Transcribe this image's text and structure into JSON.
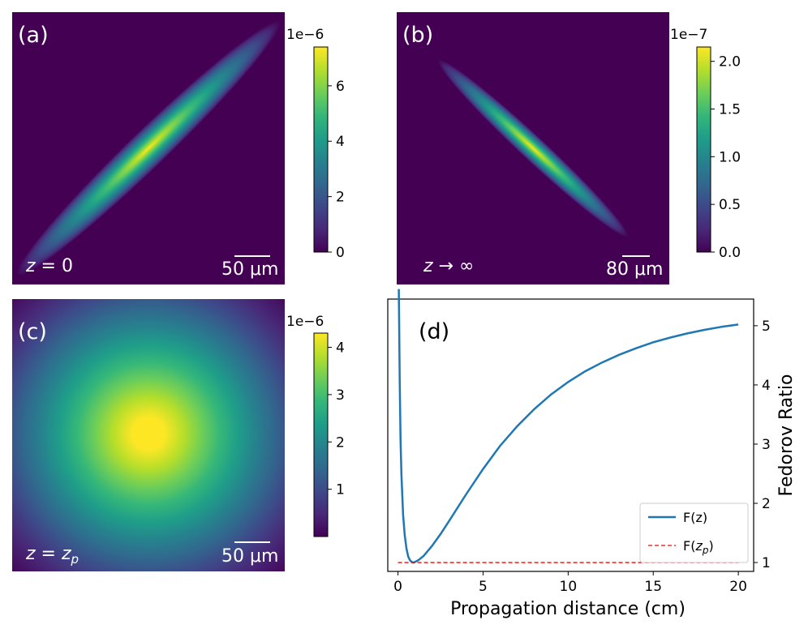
{
  "colors": {
    "viridis": [
      "#440154",
      "#482878",
      "#3e4989",
      "#31688e",
      "#26828e",
      "#1f9e89",
      "#35b779",
      "#6ece58",
      "#b5de2b",
      "#fde725"
    ],
    "background": "#440154",
    "curve": "#1f77b4",
    "ref_line": "#ff0000"
  },
  "chart_data": [
    {
      "type": "heatmap",
      "panel_label": "(a)",
      "annotation_var": "z",
      "annotation_rest": " = 0",
      "scale_bar": "50 μm",
      "colorbar": {
        "exponent": "1e−6",
        "ticks": [
          "0",
          "2",
          "4",
          "6"
        ],
        "tick_values": [
          0,
          2,
          4,
          6
        ],
        "range": [
          0,
          7.4
        ]
      },
      "orientation": "diagonal-up"
    },
    {
      "type": "heatmap",
      "panel_label": "(b)",
      "annotation_var": "z",
      "annotation_rest": " → ∞",
      "scale_bar": "80 μm",
      "colorbar": {
        "exponent": "1e−7",
        "ticks": [
          "0.0",
          "0.5",
          "1.0",
          "1.5",
          "2.0"
        ],
        "tick_values": [
          0,
          0.5,
          1.0,
          1.5,
          2.0
        ],
        "range": [
          0,
          2.15
        ]
      },
      "orientation": "diagonal-down"
    },
    {
      "type": "heatmap",
      "panel_label": "(c)",
      "annotation_var": "z",
      "annotation_rest": " = ",
      "annotation_sub_base": "z",
      "annotation_sub": "p",
      "scale_bar": "50 μm",
      "colorbar": {
        "exponent": "1e−6",
        "ticks": [
          "1",
          "2",
          "3",
          "4"
        ],
        "tick_values": [
          1,
          2,
          3,
          4
        ],
        "range": [
          0,
          4.3
        ]
      },
      "orientation": "circular"
    },
    {
      "type": "line",
      "panel_label": "(d)",
      "xlabel": "Propagation distance (cm)",
      "ylabel": "Fedorov Ratio",
      "xlim": [
        -0.6,
        20.9
      ],
      "ylim": [
        0.85,
        5.45
      ],
      "xticks": [
        0,
        5,
        10,
        15,
        20
      ],
      "yticks": [
        1,
        2,
        3,
        4,
        5
      ],
      "y_axis_side": "right",
      "series": [
        {
          "name": "F(z)",
          "style": "solid",
          "x": [
            0.05,
            0.1,
            0.15,
            0.2,
            0.3,
            0.4,
            0.5,
            0.6,
            0.7,
            0.8,
            0.9,
            1.0,
            1.2,
            1.5,
            2,
            2.5,
            3,
            4,
            5,
            6,
            7,
            8,
            9,
            10,
            11,
            12,
            13,
            14,
            15,
            16,
            17,
            18,
            19,
            20
          ],
          "y": [
            5.62,
            4.1,
            3.1,
            2.5,
            1.8,
            1.45,
            1.23,
            1.1,
            1.04,
            1.01,
            1.0,
            1.01,
            1.04,
            1.11,
            1.28,
            1.48,
            1.7,
            2.15,
            2.58,
            2.97,
            3.3,
            3.59,
            3.84,
            4.05,
            4.23,
            4.38,
            4.51,
            4.62,
            4.72,
            4.8,
            4.87,
            4.93,
            4.98,
            5.02
          ]
        },
        {
          "name": "F(",
          "name_sub_base": "z",
          "name_sub": "p",
          "name_end": ")",
          "style": "dashed",
          "x": [
            0,
            20
          ],
          "y": [
            1.0,
            1.0
          ]
        }
      ],
      "legend": "bottom-right"
    }
  ]
}
